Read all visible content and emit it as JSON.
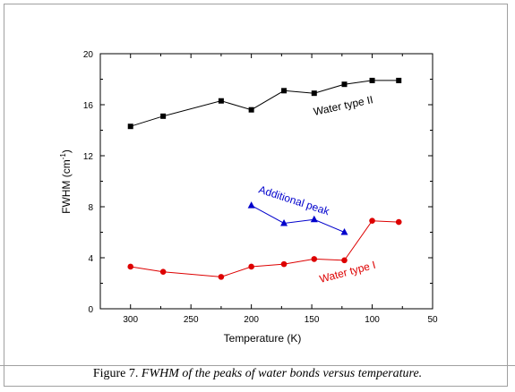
{
  "caption": {
    "prefix": "Figure 7.",
    "text": "FWHM of the peaks of water bonds versus temperature."
  },
  "chart_data": {
    "type": "line",
    "xlabel": "Temperature (K)",
    "ylabel_main": "FWHM (cm",
    "ylabel_sup": "-1",
    "ylabel_end": ")",
    "xlim": [
      325,
      50
    ],
    "ylim": [
      0,
      20
    ],
    "xticks": [
      300,
      250,
      200,
      150,
      100,
      50
    ],
    "yticks": [
      0,
      4,
      8,
      12,
      16,
      20
    ],
    "grid": false,
    "series": [
      {
        "name": "Water type II",
        "color": "#000000",
        "marker": "square",
        "x": [
          300,
          273,
          225,
          200,
          173,
          148,
          123,
          100,
          78
        ],
        "y": [
          14.3,
          15.1,
          16.3,
          15.6,
          17.1,
          16.9,
          17.6,
          17.9,
          17.9
        ]
      },
      {
        "name": "Additional peak",
        "color": "#0000cc",
        "marker": "triangle",
        "x": [
          200,
          173,
          148,
          123
        ],
        "y": [
          8.1,
          6.7,
          7.0,
          6.0
        ]
      },
      {
        "name": "Water type I",
        "color": "#dd0000",
        "marker": "circle",
        "x": [
          300,
          273,
          225,
          200,
          173,
          148,
          123,
          100,
          78
        ],
        "y": [
          3.3,
          2.9,
          2.5,
          3.3,
          3.5,
          3.9,
          3.8,
          6.9,
          6.8
        ]
      }
    ]
  }
}
